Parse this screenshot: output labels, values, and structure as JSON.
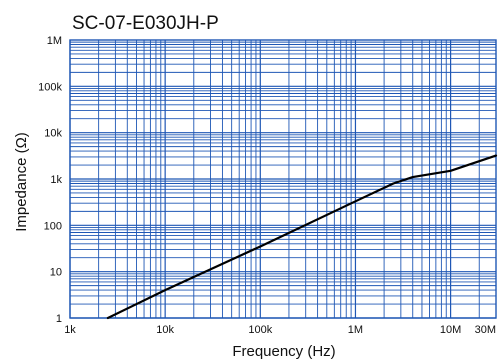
{
  "chart_data": {
    "type": "line",
    "title": "SC-07-E030JH-P",
    "xlabel": "Frequency (Hz)",
    "ylabel": "Impedance (Ω)",
    "x_scale": "log",
    "y_scale": "log",
    "xlim": [
      1000,
      30000000
    ],
    "ylim": [
      1,
      1000000
    ],
    "x_ticks": [
      {
        "value": 1000,
        "label": "1k"
      },
      {
        "value": 10000,
        "label": "10k"
      },
      {
        "value": 100000,
        "label": "100k"
      },
      {
        "value": 1000000,
        "label": "1M"
      },
      {
        "value": 10000000,
        "label": "10M"
      },
      {
        "value": 30000000,
        "label": "30M"
      }
    ],
    "y_ticks": [
      {
        "value": 1,
        "label": "1"
      },
      {
        "value": 10,
        "label": "10"
      },
      {
        "value": 100,
        "label": "100"
      },
      {
        "value": 1000,
        "label": "1k"
      },
      {
        "value": 10000,
        "label": "10k"
      },
      {
        "value": 100000,
        "label": "100k"
      },
      {
        "value": 1000000,
        "label": "1M"
      }
    ],
    "grid": true,
    "grid_color": "#1f57b5",
    "line_color": "#000000",
    "series": [
      {
        "x": [
          2500,
          10000,
          100000,
          1000000,
          2500000,
          4000000,
          10000000,
          30000000
        ],
        "y": [
          1,
          4,
          35,
          330,
          800,
          1100,
          1500,
          3200
        ]
      }
    ]
  }
}
